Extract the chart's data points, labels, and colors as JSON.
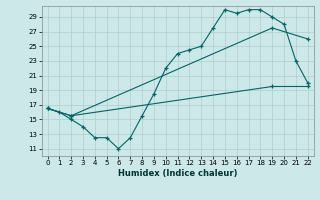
{
  "xlabel": "Humidex (Indice chaleur)",
  "background_color": "#cce8e8",
  "grid_color": "#b0cccc",
  "line_color": "#006666",
  "xlim": [
    -0.5,
    22.5
  ],
  "ylim": [
    10.0,
    30.5
  ],
  "yticks": [
    11,
    13,
    15,
    17,
    19,
    21,
    23,
    25,
    27,
    29
  ],
  "xticks": [
    0,
    1,
    2,
    3,
    4,
    5,
    6,
    7,
    8,
    9,
    10,
    11,
    12,
    13,
    14,
    15,
    16,
    17,
    18,
    19,
    20,
    21,
    22
  ],
  "line1_x": [
    0,
    1,
    2,
    3,
    4,
    5,
    6,
    7,
    8,
    9,
    10,
    11,
    12,
    13,
    14,
    15,
    16,
    17,
    18,
    19,
    20,
    21,
    22
  ],
  "line1_y": [
    16.5,
    16,
    15,
    14,
    12.5,
    12.5,
    11,
    12.5,
    15.5,
    18.5,
    22,
    24,
    24.5,
    25,
    27.5,
    30,
    29.5,
    30,
    30,
    29,
    28,
    23,
    20
  ],
  "line2_x": [
    0,
    2,
    19,
    22
  ],
  "line2_y": [
    16.5,
    15.5,
    27.5,
    26
  ],
  "line3_x": [
    0,
    2,
    19,
    22
  ],
  "line3_y": [
    16.5,
    15.5,
    19.5,
    19.5
  ]
}
